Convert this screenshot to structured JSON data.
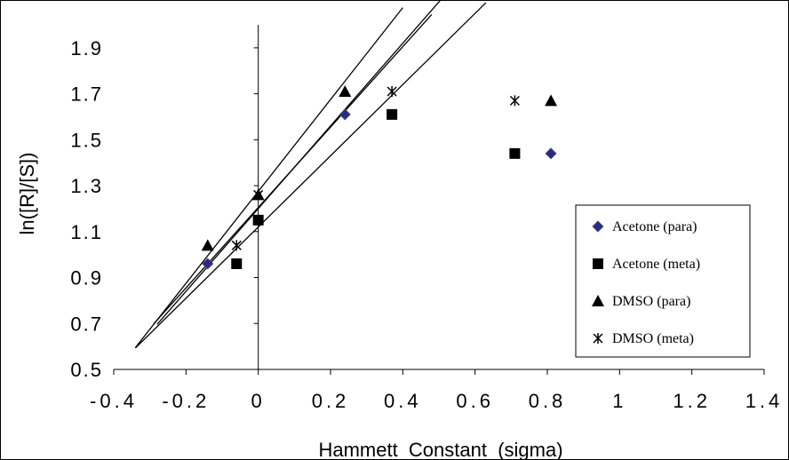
{
  "chart_data": {
    "type": "scatter",
    "xlabel": "Hammett  Constant  (sigma)",
    "ylabel": "ln([R]/[S])",
    "xlim": [
      -0.4,
      1.4
    ],
    "ylim": [
      0.5,
      2.0
    ],
    "x_ticks": [
      -0.4,
      -0.2,
      0,
      0.2,
      0.4,
      0.6,
      0.8,
      1,
      1.2,
      1.4
    ],
    "x_tick_labels": [
      "-0.4",
      "-0.2",
      "0",
      "0.2",
      "0.4",
      "0.6",
      "0.8",
      "1",
      "1.2",
      "1.4"
    ],
    "y_ticks": [
      0.5,
      0.7,
      0.9,
      1.1,
      1.3,
      1.5,
      1.7,
      1.9
    ],
    "y_tick_labels": [
      "0.5",
      "0.7",
      "0.9",
      "1.1",
      "1.3",
      "1.5",
      "1.7",
      "1.9"
    ],
    "grid": false,
    "legend_position": "bottom-right",
    "series": [
      {
        "name": "Acetone (para)",
        "marker": "diamond",
        "color": "#2a2a8c",
        "x": [
          -0.14,
          0.24,
          0.81
        ],
        "y": [
          0.96,
          1.61,
          1.44
        ],
        "fit": {
          "slope": 1.8,
          "intercept": 1.2,
          "x_range": [
            -0.28,
            0.56
          ]
        }
      },
      {
        "name": "Acetone (meta)",
        "marker": "square",
        "color": "#000000",
        "x": [
          -0.06,
          0.0,
          0.37,
          0.71
        ],
        "y": [
          0.96,
          1.15,
          1.61,
          1.44
        ],
        "fit": {
          "slope": 1.55,
          "intercept": 1.12,
          "x_range": [
            -0.34,
            0.63
          ]
        }
      },
      {
        "name": "DMSO (para)",
        "marker": "triangle",
        "color": "#000000",
        "x": [
          -0.14,
          0.0,
          0.24,
          0.81
        ],
        "y": [
          1.04,
          1.26,
          1.71,
          1.67
        ],
        "fit": {
          "slope": 2.0,
          "intercept": 1.275,
          "x_range": [
            -0.34,
            0.4
          ]
        }
      },
      {
        "name": "DMSO (meta)",
        "marker": "asterisk",
        "color": "#000000",
        "x": [
          -0.06,
          0.0,
          0.37,
          0.71
        ],
        "y": [
          1.04,
          1.26,
          1.71,
          1.67
        ],
        "fit": {
          "slope": 1.75,
          "intercept": 1.205,
          "x_range": [
            -0.29,
            0.48
          ]
        }
      }
    ]
  }
}
